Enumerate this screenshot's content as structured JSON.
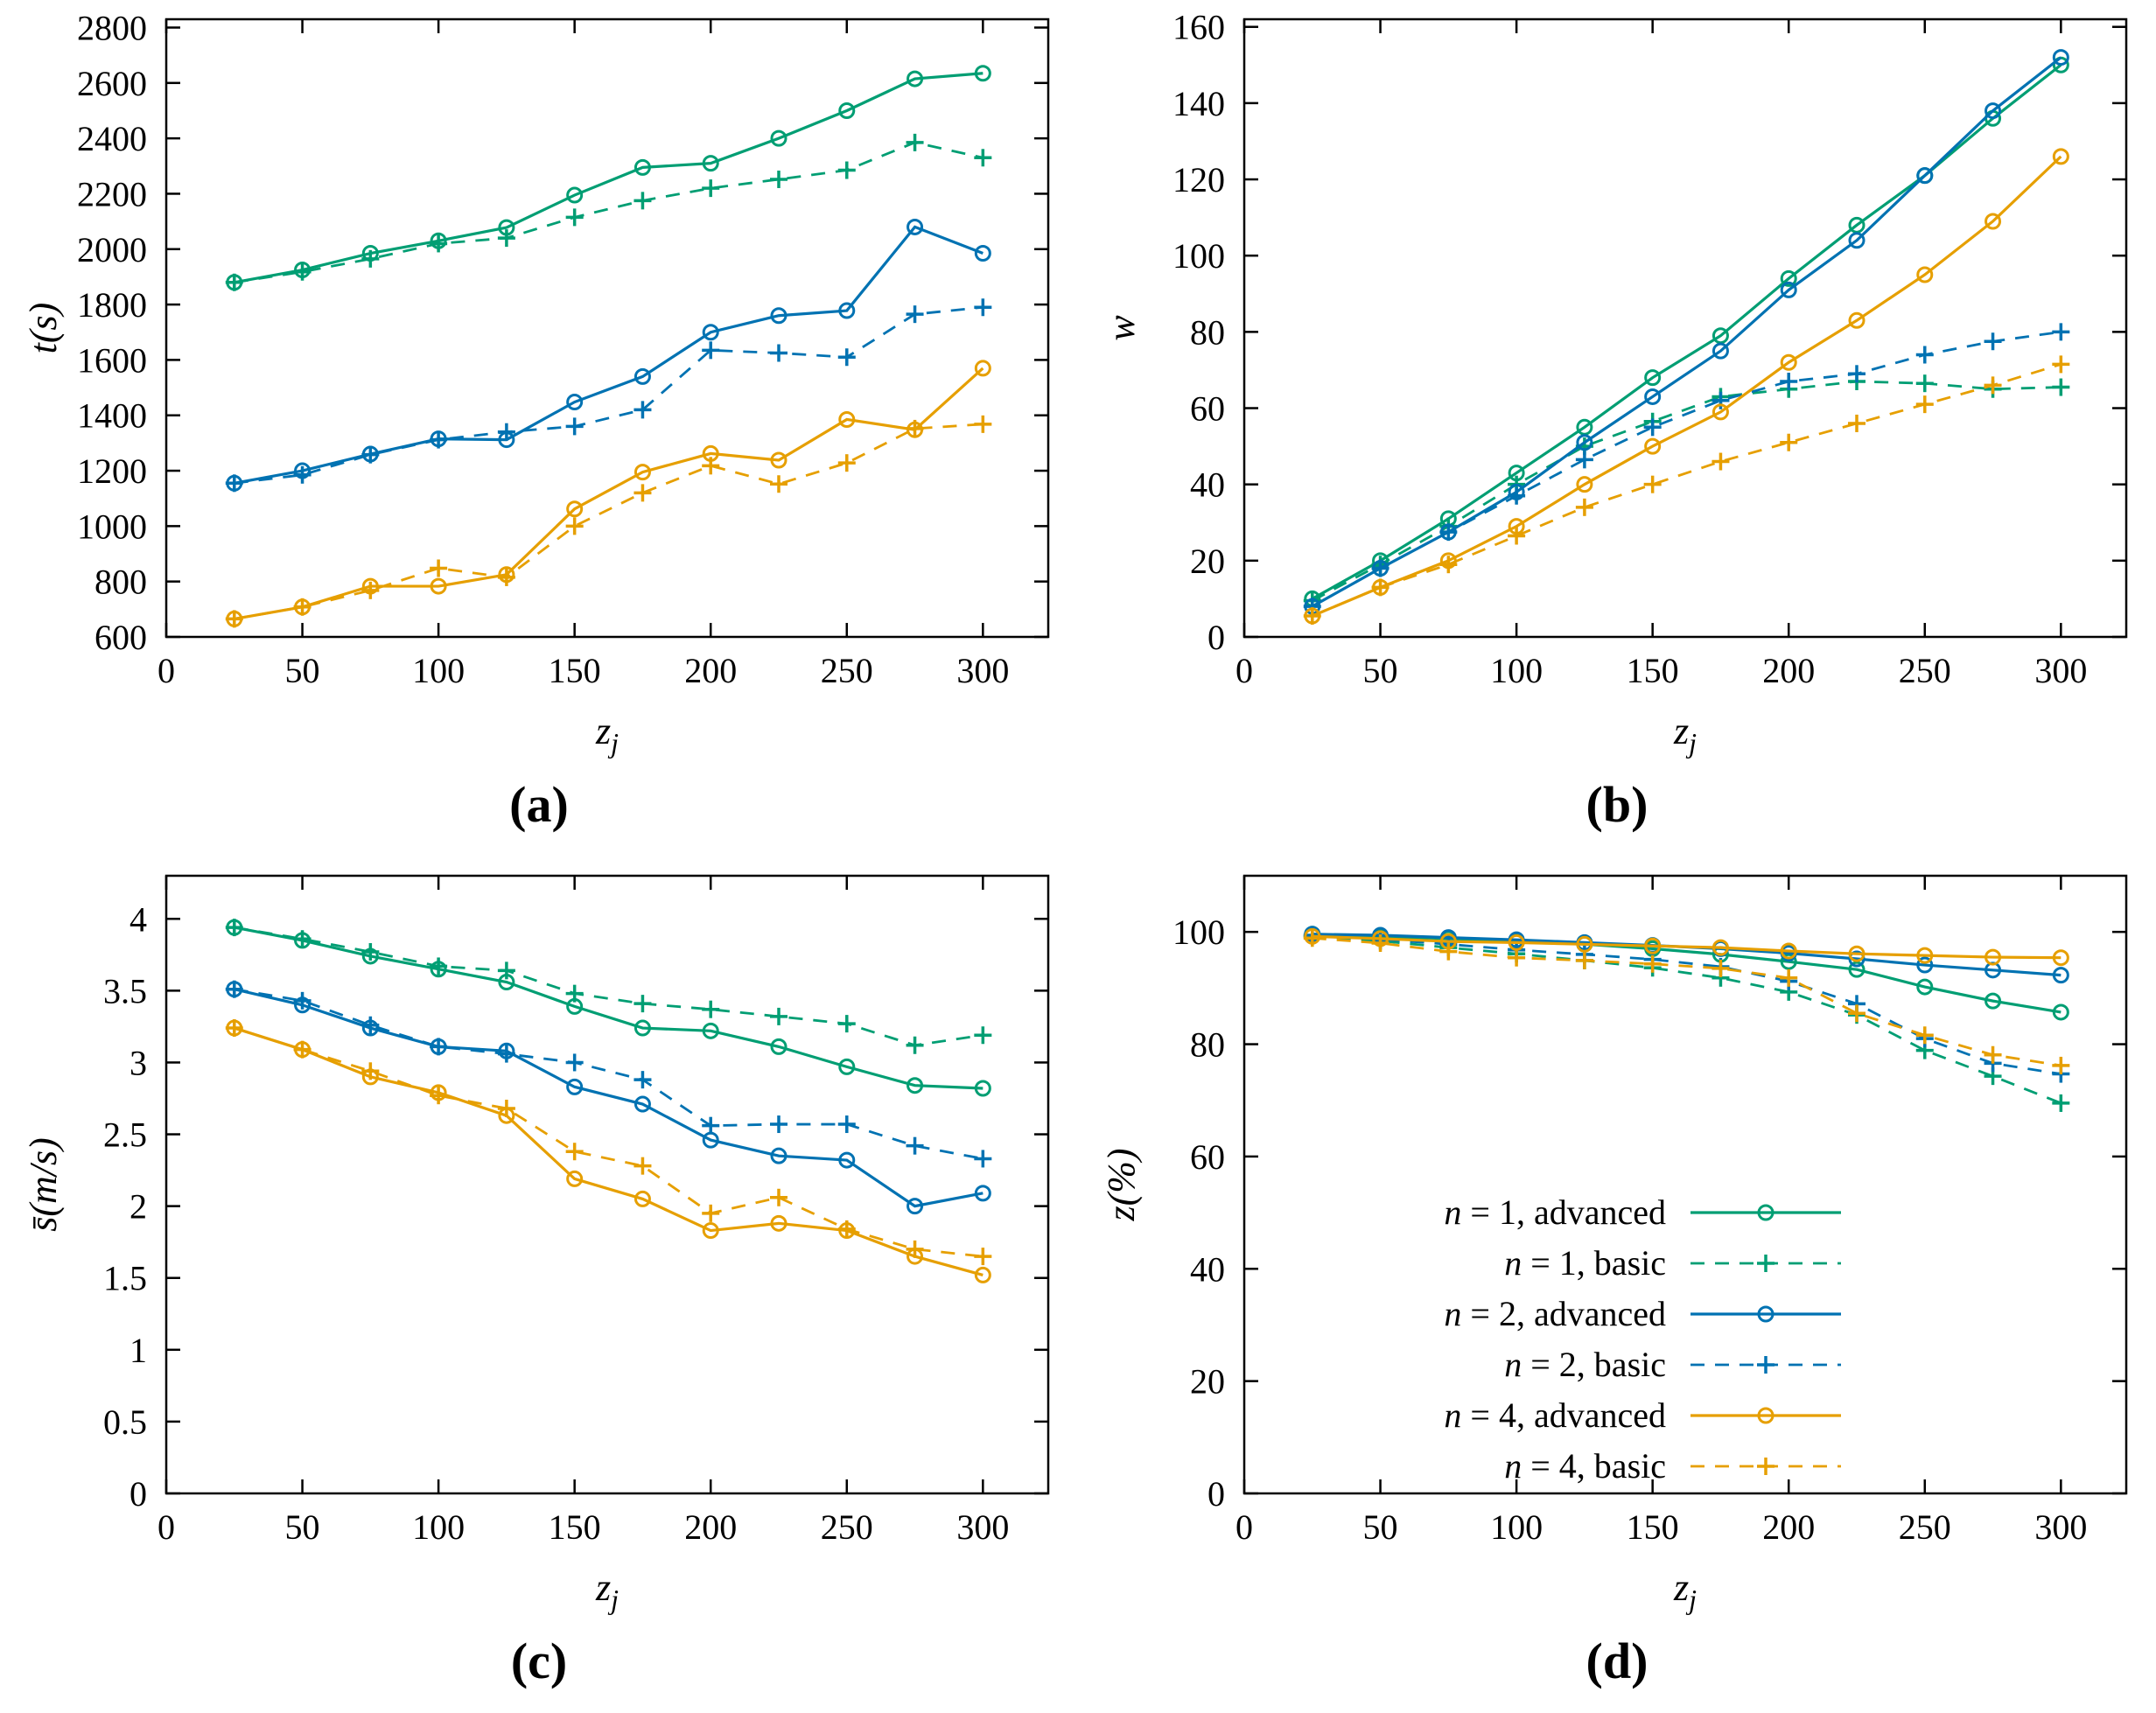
{
  "palette": {
    "n1": "#009E73",
    "n2": "#0072B2",
    "n4": "#E69F00"
  },
  "xlabel": {
    "base": "z",
    "sub": "j"
  },
  "x_values": [
    25,
    50,
    75,
    100,
    125,
    150,
    175,
    200,
    225,
    250,
    275,
    300
  ],
  "chart_data": [
    {
      "id": "a",
      "type": "line",
      "caption": "(a)",
      "ylabel": "t(s)",
      "xlim": [
        0,
        324
      ],
      "ylim": [
        600,
        2830
      ],
      "xticks": [
        0,
        50,
        100,
        150,
        200,
        250,
        300
      ],
      "yticks": [
        600,
        800,
        1000,
        1200,
        1400,
        1600,
        1800,
        2000,
        2200,
        2400,
        2600,
        2800
      ],
      "grid": false,
      "legend": false,
      "x": [
        25,
        50,
        75,
        100,
        125,
        150,
        175,
        200,
        225,
        250,
        275,
        300
      ],
      "series": [
        {
          "name": "n = 1, advanced",
          "color": "#009E73",
          "dash": false,
          "marker": "circle",
          "values": [
            1880,
            1925,
            1985,
            2030,
            2078,
            2195,
            2295,
            2310,
            2400,
            2500,
            2615,
            2635
          ]
        },
        {
          "name": "n = 1, basic",
          "color": "#009E73",
          "dash": true,
          "marker": "plus",
          "values": [
            1880,
            1918,
            1965,
            2020,
            2040,
            2115,
            2175,
            2220,
            2252,
            2285,
            2385,
            2330
          ]
        },
        {
          "name": "n = 2, advanced",
          "color": "#0072B2",
          "dash": false,
          "marker": "circle",
          "values": [
            1155,
            1200,
            1260,
            1315,
            1312,
            1448,
            1540,
            1700,
            1760,
            1778,
            2080,
            1985
          ]
        },
        {
          "name": "n = 2, basic",
          "color": "#0072B2",
          "dash": true,
          "marker": "plus",
          "values": [
            1155,
            1185,
            1258,
            1312,
            1340,
            1360,
            1420,
            1635,
            1625,
            1610,
            1765,
            1790
          ]
        },
        {
          "name": "n = 4, advanced",
          "color": "#E69F00",
          "dash": false,
          "marker": "circle",
          "values": [
            665,
            708,
            783,
            783,
            825,
            1062,
            1195,
            1262,
            1238,
            1385,
            1348,
            1570
          ]
        },
        {
          "name": "n = 4, basic",
          "color": "#E69F00",
          "dash": true,
          "marker": "plus",
          "values": [
            665,
            708,
            768,
            848,
            815,
            1000,
            1120,
            1218,
            1152,
            1228,
            1352,
            1368
          ]
        }
      ]
    },
    {
      "id": "b",
      "type": "line",
      "caption": "(b)",
      "ylabel": "w",
      "xlim": [
        0,
        324
      ],
      "ylim": [
        0,
        162
      ],
      "xticks": [
        0,
        50,
        100,
        150,
        200,
        250,
        300
      ],
      "yticks": [
        0,
        20,
        40,
        60,
        80,
        100,
        120,
        140,
        160
      ],
      "grid": false,
      "legend": false,
      "x": [
        25,
        50,
        75,
        100,
        125,
        150,
        175,
        200,
        225,
        250,
        275,
        300
      ],
      "series": [
        {
          "name": "n = 1, advanced",
          "color": "#009E73",
          "dash": false,
          "marker": "circle",
          "values": [
            10,
            20,
            31,
            43,
            55,
            68,
            79,
            94,
            108,
            121,
            136,
            150
          ]
        },
        {
          "name": "n = 1, basic",
          "color": "#009E73",
          "dash": true,
          "marker": "plus",
          "values": [
            9.5,
            19,
            29,
            40,
            50,
            56.5,
            63,
            65,
            67,
            66.5,
            65,
            65.5
          ]
        },
        {
          "name": "n = 2, advanced",
          "color": "#0072B2",
          "dash": false,
          "marker": "circle",
          "values": [
            8,
            18,
            27.5,
            38,
            51,
            63,
            75,
            91,
            104,
            121,
            138,
            152
          ]
        },
        {
          "name": "n = 2, basic",
          "color": "#0072B2",
          "dash": true,
          "marker": "plus",
          "values": [
            8,
            18,
            27.5,
            37,
            46.5,
            55,
            62,
            67,
            69,
            74,
            77.5,
            80
          ]
        },
        {
          "name": "n = 4, advanced",
          "color": "#E69F00",
          "dash": false,
          "marker": "circle",
          "values": [
            5.5,
            13,
            20,
            29,
            40,
            50,
            59,
            72,
            83,
            95,
            109,
            126
          ]
        },
        {
          "name": "n = 4, basic",
          "color": "#E69F00",
          "dash": true,
          "marker": "plus",
          "values": [
            5.5,
            13,
            19,
            26.5,
            34,
            40,
            46,
            51,
            56,
            61,
            66,
            71.5
          ]
        }
      ]
    },
    {
      "id": "c",
      "type": "line",
      "caption": "(c)",
      "ylabel": "s̄(m/s)",
      "xlim": [
        0,
        324
      ],
      "ylim": [
        0,
        4.3
      ],
      "xticks": [
        0,
        50,
        100,
        150,
        200,
        250,
        300
      ],
      "yticks": [
        0,
        0.5,
        1,
        1.5,
        2,
        2.5,
        3,
        3.5,
        4
      ],
      "grid": false,
      "legend": false,
      "x": [
        25,
        50,
        75,
        100,
        125,
        150,
        175,
        200,
        225,
        250,
        275,
        300
      ],
      "series": [
        {
          "name": "n = 1, advanced",
          "color": "#009E73",
          "dash": false,
          "marker": "circle",
          "values": [
            3.94,
            3.85,
            3.74,
            3.65,
            3.56,
            3.39,
            3.24,
            3.22,
            3.11,
            2.97,
            2.84,
            2.82
          ]
        },
        {
          "name": "n = 1, basic",
          "color": "#009E73",
          "dash": true,
          "marker": "plus",
          "values": [
            3.94,
            3.86,
            3.77,
            3.67,
            3.64,
            3.48,
            3.41,
            3.37,
            3.32,
            3.27,
            3.12,
            3.19
          ]
        },
        {
          "name": "n = 2, advanced",
          "color": "#0072B2",
          "dash": false,
          "marker": "circle",
          "values": [
            3.51,
            3.4,
            3.24,
            3.11,
            3.08,
            2.83,
            2.71,
            2.46,
            2.35,
            2.32,
            2.0,
            2.09
          ]
        },
        {
          "name": "n = 2, basic",
          "color": "#0072B2",
          "dash": true,
          "marker": "plus",
          "values": [
            3.51,
            3.43,
            3.26,
            3.11,
            3.06,
            3.0,
            2.88,
            2.56,
            2.57,
            2.57,
            2.42,
            2.33
          ]
        },
        {
          "name": "n = 4, advanced",
          "color": "#E69F00",
          "dash": false,
          "marker": "circle",
          "values": [
            3.24,
            3.09,
            2.9,
            2.79,
            2.63,
            2.19,
            2.05,
            1.83,
            1.88,
            1.83,
            1.65,
            1.52
          ]
        },
        {
          "name": "n = 4, basic",
          "color": "#E69F00",
          "dash": true,
          "marker": "plus",
          "values": [
            3.24,
            3.09,
            2.94,
            2.77,
            2.68,
            2.38,
            2.28,
            1.95,
            2.06,
            1.84,
            1.7,
            1.65
          ]
        }
      ]
    },
    {
      "id": "d",
      "type": "line",
      "caption": "(d)",
      "ylabel": "z(%)",
      "xlim": [
        0,
        324
      ],
      "ylim": [
        0,
        110
      ],
      "xticks": [
        0,
        50,
        100,
        150,
        200,
        250,
        300
      ],
      "yticks": [
        0,
        20,
        40,
        60,
        80,
        100
      ],
      "grid": false,
      "legend": true,
      "legend_position": "inside bottom-center-left",
      "x": [
        25,
        50,
        75,
        100,
        125,
        150,
        175,
        200,
        225,
        250,
        275,
        300
      ],
      "series": [
        {
          "name": "n = 1, advanced",
          "color": "#009E73",
          "dash": false,
          "marker": "circle",
          "values": [
            99.6,
            99.2,
            98.8,
            98.4,
            97.8,
            97.0,
            96.0,
            94.7,
            93.3,
            90.2,
            87.7,
            85.7
          ]
        },
        {
          "name": "n = 1, basic",
          "color": "#009E73",
          "dash": true,
          "marker": "plus",
          "values": [
            99.2,
            98.4,
            97.2,
            96.1,
            94.9,
            93.6,
            91.8,
            89.3,
            85.2,
            78.9,
            74.3,
            69.5
          ]
        },
        {
          "name": "n = 2, advanced",
          "color": "#0072B2",
          "dash": false,
          "marker": "circle",
          "values": [
            99.6,
            99.4,
            99.0,
            98.6,
            98.1,
            97.6,
            97.0,
            96.2,
            95.2,
            94.1,
            93.2,
            92.3
          ]
        },
        {
          "name": "n = 2, basic",
          "color": "#0072B2",
          "dash": true,
          "marker": "plus",
          "values": [
            99.4,
            98.7,
            97.8,
            96.8,
            96.0,
            95.1,
            93.8,
            91.2,
            87.2,
            81.0,
            76.6,
            74.7
          ]
        },
        {
          "name": "n = 4, advanced",
          "color": "#E69F00",
          "dash": false,
          "marker": "circle",
          "values": [
            99.2,
            98.8,
            98.3,
            98.1,
            97.8,
            97.5,
            97.2,
            96.6,
            96.1,
            95.8,
            95.5,
            95.4
          ]
        },
        {
          "name": "n = 4, basic",
          "color": "#E69F00",
          "dash": true,
          "marker": "plus",
          "values": [
            98.9,
            98.0,
            96.5,
            95.4,
            94.9,
            94.3,
            93.5,
            91.8,
            85.5,
            81.6,
            78.1,
            76.2
          ]
        }
      ]
    }
  ]
}
